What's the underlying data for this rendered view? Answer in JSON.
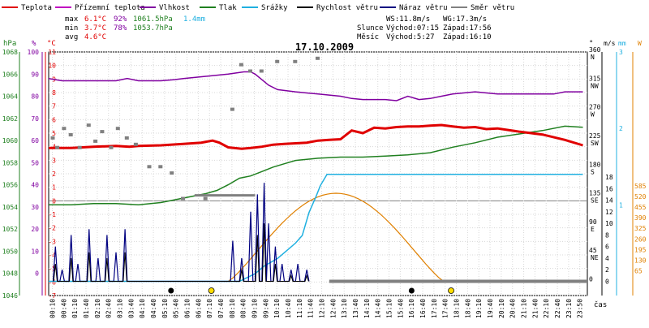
{
  "chart_data": {
    "type": "line",
    "title": "17.10.2009",
    "legend": [
      {
        "label": "Teplota",
        "color": "#e00000"
      },
      {
        "label": "Přízemní teplota",
        "color": "#c000c0"
      },
      {
        "label": "Vlhkost",
        "color": "#8000a0"
      },
      {
        "label": "Tlak",
        "color": "#208020"
      },
      {
        "label": "Srážky",
        "color": "#20b0e0"
      },
      {
        "label": "Rychlost větru",
        "color": "#000000"
      },
      {
        "label": "Náraz větru",
        "color": "#000080"
      },
      {
        "label": "Směr větru",
        "color": "#808080"
      }
    ],
    "stats": {
      "max": {
        "label": "max",
        "temp": "6.1°C",
        "hum": "92%",
        "press": "1061.5hPa",
        "rain": "1.4mm"
      },
      "min": {
        "label": "min",
        "temp": "3.7°C",
        "hum": "78%",
        "press": "1053.7hPa"
      },
      "avg": {
        "label": "avg",
        "temp": "4.6°C"
      }
    },
    "wind_info": {
      "ws": "WS:11.8m/s",
      "wg": "WG:17.3m/s"
    },
    "sun": {
      "label": "Slunce",
      "rise": "Východ:07:15",
      "set": "Západ:17:56"
    },
    "moon": {
      "label": "Měsíc",
      "rise": "Východ:5:27",
      "set": "Západ:16:10"
    },
    "axes": {
      "hpa": {
        "unit": "hPa",
        "ticks": [
          "1068",
          "1066",
          "1064",
          "1062",
          "1060",
          "1058",
          "1056",
          "1054",
          "1052",
          "1050",
          "1048",
          "1046"
        ]
      },
      "pct": {
        "unit": "%",
        "ticks": [
          "100",
          "90",
          "80",
          "70",
          "60",
          "50",
          "40",
          "30",
          "20",
          "10",
          "0"
        ]
      },
      "temp": {
        "unit": "°C",
        "ticks": [
          "11",
          "10",
          "9",
          "8",
          "7",
          "6",
          "5",
          "4",
          "3",
          "2",
          "1",
          "0",
          "-1",
          "-2",
          "-3",
          "-4",
          "-5",
          "-6",
          "-7"
        ]
      },
      "dir": {
        "unit": "°",
        "ticks": [
          {
            "deg": "360",
            "lbl": "N"
          },
          {
            "deg": "315",
            "lbl": "NW"
          },
          {
            "deg": "270",
            "lbl": "W"
          },
          {
            "deg": "225",
            "lbl": "SW"
          },
          {
            "deg": "180",
            "lbl": "S"
          },
          {
            "deg": "135",
            "lbl": "SE"
          },
          {
            "deg": "90",
            "lbl": "E"
          },
          {
            "deg": "45",
            "lbl": "NE"
          },
          {
            "deg": "0",
            "lbl": ""
          }
        ]
      },
      "ms": {
        "unit": "m/s",
        "ticks": [
          "18",
          "16",
          "14",
          "12",
          "10",
          "8",
          "6",
          "4",
          "2",
          "0"
        ]
      },
      "mm": {
        "unit": "mm",
        "ticks": [
          "3",
          "2",
          "1"
        ]
      },
      "wm2": {
        "unit": "W",
        "ticks": [
          "585",
          "520",
          "455",
          "390",
          "325",
          "260",
          "195",
          "130",
          "65"
        ]
      },
      "x": {
        "unit": "čas",
        "ticks": [
          "00:10",
          "00:40",
          "01:10",
          "01:40",
          "02:10",
          "02:40",
          "03:10",
          "03:40",
          "04:10",
          "04:40",
          "05:10",
          "05:40",
          "06:10",
          "06:40",
          "07:10",
          "07:40",
          "08:10",
          "08:40",
          "09:10",
          "09:40",
          "10:10",
          "10:40",
          "11:10",
          "11:40",
          "12:10",
          "12:40",
          "13:10",
          "13:40",
          "14:10",
          "14:40",
          "15:10",
          "15:40",
          "16:10",
          "16:40",
          "17:10",
          "17:40",
          "18:10",
          "18:40",
          "19:10",
          "19:40",
          "20:10",
          "20:40",
          "21:10",
          "21:40",
          "22:10",
          "22:40",
          "23:10",
          "23:50"
        ]
      }
    },
    "series": [
      {
        "name": "Teplota",
        "unit": "°C",
        "x": [
          0,
          1,
          1.5,
          2,
          3,
          3.6,
          4,
          5,
          6,
          6.8,
          7.3,
          7.6,
          8,
          8.6,
          9,
          9.5,
          10,
          10.5,
          11,
          11.5,
          12,
          12.5,
          13,
          13.5,
          14,
          14.5,
          15,
          15.5,
          16,
          16.5,
          17,
          17.5,
          18,
          18.5,
          19,
          19.5,
          20,
          21,
          22,
          23,
          23.8
        ],
        "y": [
          3.9,
          3.9,
          3.95,
          4.0,
          4.05,
          4.0,
          4.05,
          4.1,
          4.2,
          4.3,
          4.45,
          4.3,
          3.95,
          3.85,
          3.9,
          4.0,
          4.15,
          4.2,
          4.25,
          4.3,
          4.45,
          4.5,
          4.55,
          5.2,
          5.0,
          5.4,
          5.35,
          5.45,
          5.5,
          5.5,
          5.55,
          5.6,
          5.5,
          5.4,
          5.45,
          5.3,
          5.35,
          5.1,
          4.9,
          4.5,
          4.1
        ]
      }
    ]
  }
}
